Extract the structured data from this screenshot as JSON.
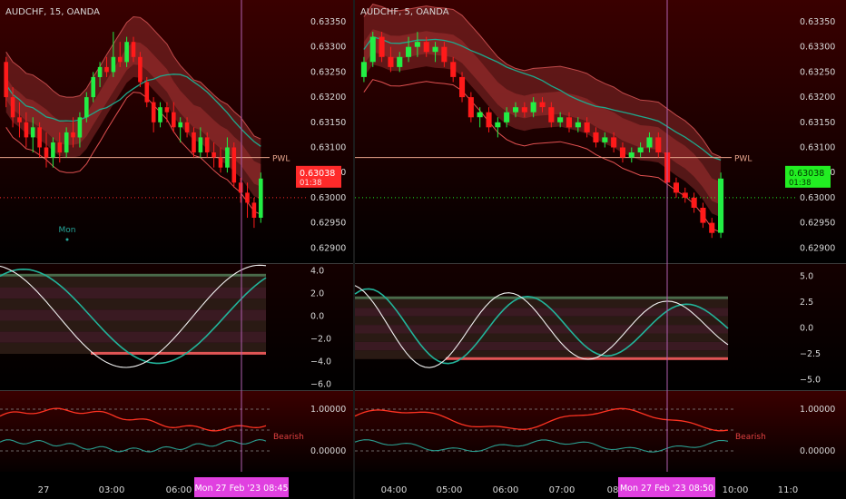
{
  "colors": {
    "bg_top": "#3a0000",
    "bg_bottom": "#000000",
    "candle_up": "#22ee44",
    "candle_down": "#ff1a1a",
    "band_fill": "#8a2a2a",
    "band_line": "#e05050",
    "ma_line": "#1fa88c",
    "pwl_line": "#e8a58c",
    "osc_white": "#f0f0f0",
    "osc_teal": "#22b39a",
    "osc_red": "#ff2222",
    "ind_red": "#ff3322",
    "ind_teal": "#2a9d8f",
    "ind_green": "#22ff33",
    "label_text": "#d8d8d8",
    "time_tag_bg": "#e040e0",
    "vline": "#b060b0"
  },
  "panels": [
    {
      "id": "left",
      "title": "AUDCHF, 15, OANDA",
      "price_ticks": [
        "0.63350",
        "0.63300",
        "0.63250",
        "0.63200",
        "0.63150",
        "0.63100",
        "0.63050",
        "0.63000",
        "0.62950",
        "0.62900"
      ],
      "last_price": "0.63038",
      "countdown": "01:38",
      "last_price_bg": "#ff2a2a",
      "pwl_label": "PWL",
      "pwl_value": 0.6308,
      "session_label": "Mon",
      "osc_ticks": [
        "4.0",
        "2.0",
        "0.0",
        "−2.0",
        "−4.0",
        "−6.0"
      ],
      "ind_ticks": [
        "1.00000",
        "0.00000"
      ],
      "signal_label": "Bearish",
      "time_labels": [
        "27",
        "03:00",
        "06:00"
      ],
      "cursor_tag": "Mon 27 Feb '23   08:45"
    },
    {
      "id": "right",
      "title": "AUDCHF, 5, OANDA",
      "price_ticks": [
        "0.63350",
        "0.63300",
        "0.63250",
        "0.63200",
        "0.63150",
        "0.63100",
        "0.63050",
        "0.63000",
        "0.62950",
        "0.62900"
      ],
      "last_price": "0.63038",
      "countdown": "01:38",
      "last_price_bg": "#22ee22",
      "pwl_label": "PWL",
      "pwl_value": 0.6308,
      "osc_ticks": [
        "5.0",
        "2.5",
        "0.0",
        "−2.5",
        "−5.0"
      ],
      "ind_ticks": [
        "1.00000",
        "0.00000"
      ],
      "signal_label": "Bearish",
      "time_labels": [
        "04:00",
        "05:00",
        "06:00",
        "07:00",
        "08",
        "10:00",
        "11:0"
      ],
      "cursor_tag": "Mon 27 Feb '23   08:50"
    }
  ],
  "chart_data": [
    {
      "type": "candlestick",
      "title": "AUDCHF, 15, OANDA",
      "timeframe": "15",
      "yrange": [
        0.6288,
        0.6337
      ],
      "x_tick_labels": [
        "27",
        "03:00",
        "06:00"
      ],
      "candles": [
        [
          0.6327,
          0.6328,
          0.6318,
          0.632
        ],
        [
          0.632,
          0.6322,
          0.6314,
          0.6316
        ],
        [
          0.6316,
          0.6319,
          0.6312,
          0.6315
        ],
        [
          0.6315,
          0.6317,
          0.631,
          0.6312
        ],
        [
          0.6312,
          0.6316,
          0.6309,
          0.6314
        ],
        [
          0.6314,
          0.6315,
          0.6308,
          0.631
        ],
        [
          0.631,
          0.6313,
          0.6306,
          0.6308
        ],
        [
          0.6308,
          0.6312,
          0.6306,
          0.6311
        ],
        [
          0.6311,
          0.6313,
          0.6307,
          0.6309
        ],
        [
          0.6309,
          0.6314,
          0.6308,
          0.6313
        ],
        [
          0.6313,
          0.6316,
          0.631,
          0.6312
        ],
        [
          0.6312,
          0.6317,
          0.631,
          0.6316
        ],
        [
          0.6316,
          0.6321,
          0.6315,
          0.632
        ],
        [
          0.632,
          0.6325,
          0.6319,
          0.6324
        ],
        [
          0.6324,
          0.6327,
          0.6322,
          0.6326
        ],
        [
          0.6326,
          0.6328,
          0.6324,
          0.6325
        ],
        [
          0.6325,
          0.6333,
          0.6324,
          0.6328
        ],
        [
          0.6328,
          0.6331,
          0.6326,
          0.6327
        ],
        [
          0.6327,
          0.6332,
          0.6326,
          0.6331
        ],
        [
          0.6331,
          0.6332,
          0.6327,
          0.6328
        ],
        [
          0.6328,
          0.6329,
          0.6322,
          0.6323
        ],
        [
          0.6323,
          0.6324,
          0.6318,
          0.6319
        ],
        [
          0.6319,
          0.632,
          0.6313,
          0.6315
        ],
        [
          0.6315,
          0.6319,
          0.6314,
          0.6318
        ],
        [
          0.6318,
          0.6319,
          0.6315,
          0.6317
        ],
        [
          0.6317,
          0.6319,
          0.6313,
          0.6314
        ],
        [
          0.6314,
          0.6316,
          0.6311,
          0.6315
        ],
        [
          0.6315,
          0.6316,
          0.6312,
          0.6313
        ],
        [
          0.6313,
          0.6314,
          0.6308,
          0.6309
        ],
        [
          0.6309,
          0.6314,
          0.6308,
          0.6312
        ],
        [
          0.6312,
          0.6313,
          0.6308,
          0.6309
        ],
        [
          0.6309,
          0.6311,
          0.6306,
          0.6308
        ],
        [
          0.6308,
          0.631,
          0.6305,
          0.6306
        ],
        [
          0.6306,
          0.6312,
          0.6305,
          0.631
        ],
        [
          0.631,
          0.6311,
          0.6302,
          0.6303
        ],
        [
          0.6303,
          0.6304,
          0.6299,
          0.6301
        ],
        [
          0.6301,
          0.6303,
          0.6296,
          0.6299
        ],
        [
          0.6299,
          0.63,
          0.6294,
          0.6296
        ],
        [
          0.6296,
          0.6305,
          0.6295,
          0.63038
        ]
      ],
      "pwl": 0.6308
    },
    {
      "type": "candlestick",
      "title": "AUDCHF, 5, OANDA",
      "timeframe": "5",
      "yrange": [
        0.6288,
        0.6337
      ],
      "x_tick_labels": [
        "04:00",
        "05:00",
        "06:00",
        "07:00",
        "08",
        "10:00",
        "11:0"
      ],
      "candles": [
        [
          0.6324,
          0.6328,
          0.6323,
          0.6327
        ],
        [
          0.6327,
          0.6333,
          0.6326,
          0.6332
        ],
        [
          0.6332,
          0.6333,
          0.6327,
          0.6328
        ],
        [
          0.6328,
          0.633,
          0.6325,
          0.6326
        ],
        [
          0.6326,
          0.6329,
          0.6325,
          0.6328
        ],
        [
          0.6328,
          0.6332,
          0.6327,
          0.633
        ],
        [
          0.633,
          0.6333,
          0.6328,
          0.6331
        ],
        [
          0.6331,
          0.6332,
          0.6328,
          0.6329
        ],
        [
          0.6329,
          0.6331,
          0.6327,
          0.633
        ],
        [
          0.633,
          0.6331,
          0.6326,
          0.6327
        ],
        [
          0.6327,
          0.6328,
          0.6323,
          0.6324
        ],
        [
          0.6324,
          0.6325,
          0.6319,
          0.632
        ],
        [
          0.632,
          0.6321,
          0.6315,
          0.6316
        ],
        [
          0.6316,
          0.6318,
          0.6314,
          0.6317
        ],
        [
          0.6317,
          0.6318,
          0.6313,
          0.6314
        ],
        [
          0.6314,
          0.6316,
          0.6312,
          0.6315
        ],
        [
          0.6315,
          0.6318,
          0.6314,
          0.6317
        ],
        [
          0.6317,
          0.6319,
          0.6316,
          0.6318
        ],
        [
          0.6318,
          0.6319,
          0.6316,
          0.6317
        ],
        [
          0.6317,
          0.632,
          0.6316,
          0.6319
        ],
        [
          0.6319,
          0.632,
          0.6317,
          0.6318
        ],
        [
          0.6318,
          0.6319,
          0.6314,
          0.6315
        ],
        [
          0.6315,
          0.6317,
          0.6314,
          0.6316
        ],
        [
          0.6316,
          0.6317,
          0.6313,
          0.6314
        ],
        [
          0.6314,
          0.6316,
          0.6313,
          0.6315
        ],
        [
          0.6315,
          0.6316,
          0.6312,
          0.6313
        ],
        [
          0.6313,
          0.6314,
          0.631,
          0.6311
        ],
        [
          0.6311,
          0.6313,
          0.631,
          0.6312
        ],
        [
          0.6312,
          0.6313,
          0.6309,
          0.631
        ],
        [
          0.631,
          0.6311,
          0.6307,
          0.6308
        ],
        [
          0.6308,
          0.631,
          0.6307,
          0.6309
        ],
        [
          0.6309,
          0.6311,
          0.6308,
          0.631
        ],
        [
          0.631,
          0.6313,
          0.6309,
          0.6312
        ],
        [
          0.6312,
          0.6313,
          0.6308,
          0.6309
        ],
        [
          0.6309,
          0.631,
          0.6302,
          0.6303
        ],
        [
          0.6303,
          0.6304,
          0.63,
          0.6301
        ],
        [
          0.6301,
          0.6302,
          0.6299,
          0.63
        ],
        [
          0.63,
          0.6301,
          0.6297,
          0.6298
        ],
        [
          0.6298,
          0.6299,
          0.6294,
          0.6295
        ],
        [
          0.6295,
          0.6296,
          0.6292,
          0.6293
        ],
        [
          0.6293,
          0.6305,
          0.6292,
          0.63038
        ]
      ],
      "pwl": 0.6308
    }
  ]
}
